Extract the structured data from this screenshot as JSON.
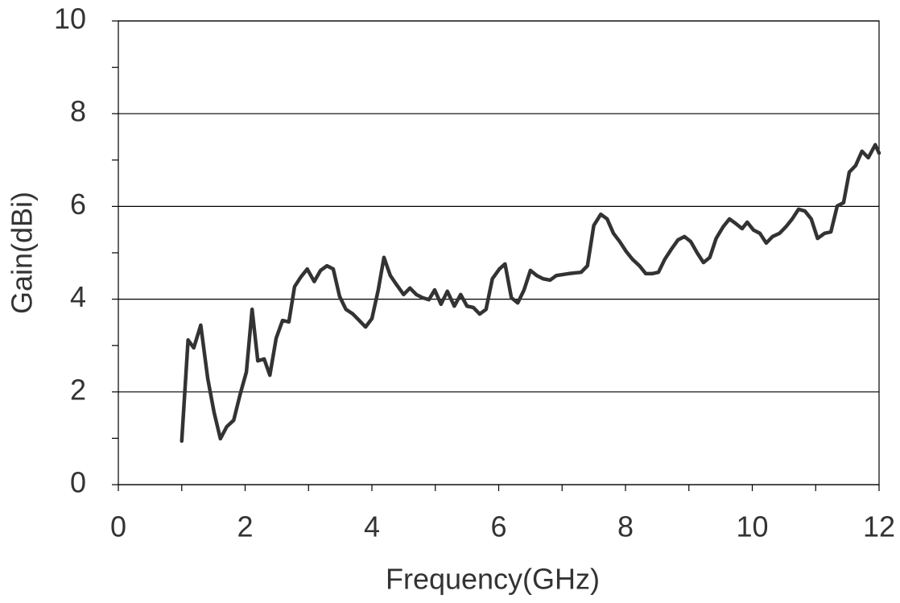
{
  "chart_data": {
    "type": "line",
    "x_label": "Frequency(GHz)",
    "y_label": "Gain(dBi)",
    "xlim": [
      0,
      12
    ],
    "xticks": [
      0,
      2,
      4,
      6,
      8,
      10,
      12
    ],
    "ylim": [
      0,
      10
    ],
    "yticks": [
      0,
      2,
      4,
      6,
      8,
      10
    ],
    "grid": true,
    "series": [
      {
        "color": "#333333",
        "x": [
          1.0,
          1.1,
          1.19,
          1.3,
          1.41,
          1.51,
          1.61,
          1.71,
          1.82,
          1.92,
          2.02,
          2.11,
          2.2,
          2.3,
          2.39,
          2.49,
          2.59,
          2.69,
          2.78,
          2.88,
          2.98,
          3.09,
          3.19,
          3.29,
          3.39,
          3.49,
          3.59,
          3.7,
          3.8,
          3.9,
          4.0,
          4.1,
          4.19,
          4.29,
          4.39,
          4.5,
          4.6,
          4.7,
          4.8,
          4.9,
          4.99,
          5.09,
          5.19,
          5.3,
          5.4,
          5.5,
          5.6,
          5.7,
          5.8,
          5.9,
          6.01,
          6.1,
          6.2,
          6.3,
          6.4,
          6.5,
          6.6,
          6.7,
          6.81,
          6.91,
          7.1,
          7.3,
          7.4,
          7.5,
          7.61,
          7.71,
          7.81,
          7.91,
          8.01,
          8.11,
          8.22,
          8.32,
          8.42,
          8.52,
          8.62,
          8.72,
          8.83,
          8.93,
          9.03,
          9.13,
          9.23,
          9.33,
          9.43,
          9.54,
          9.64,
          9.74,
          9.84,
          9.92,
          10.02,
          10.12,
          10.22,
          10.32,
          10.43,
          10.53,
          10.63,
          10.73,
          10.83,
          10.93,
          11.03,
          11.14,
          11.24,
          11.34,
          11.44,
          11.53,
          11.63,
          11.73,
          11.83,
          11.94,
          12.0
        ],
        "values": [
          0.94,
          3.12,
          2.95,
          3.44,
          2.29,
          1.56,
          0.99,
          1.25,
          1.39,
          1.94,
          2.43,
          3.78,
          2.67,
          2.71,
          2.36,
          3.16,
          3.54,
          3.51,
          4.27,
          4.48,
          4.65,
          4.38,
          4.62,
          4.72,
          4.65,
          4.06,
          3.78,
          3.68,
          3.54,
          3.4,
          3.58,
          4.2,
          4.9,
          4.51,
          4.31,
          4.1,
          4.24,
          4.1,
          4.03,
          3.99,
          4.2,
          3.89,
          4.17,
          3.85,
          4.1,
          3.85,
          3.82,
          3.68,
          3.78,
          4.44,
          4.65,
          4.76,
          4.03,
          3.92,
          4.2,
          4.62,
          4.51,
          4.44,
          4.41,
          4.51,
          4.55,
          4.58,
          4.72,
          5.59,
          5.83,
          5.73,
          5.42,
          5.24,
          5.03,
          4.86,
          4.72,
          4.55,
          4.55,
          4.58,
          4.86,
          5.07,
          5.28,
          5.35,
          5.24,
          5.0,
          4.79,
          4.9,
          5.31,
          5.56,
          5.73,
          5.63,
          5.52,
          5.66,
          5.49,
          5.42,
          5.21,
          5.35,
          5.42,
          5.56,
          5.73,
          5.94,
          5.9,
          5.73,
          5.31,
          5.42,
          5.45,
          6.01,
          6.08,
          6.74,
          6.88,
          7.19,
          7.05,
          7.33,
          7.15
        ]
      }
    ]
  }
}
